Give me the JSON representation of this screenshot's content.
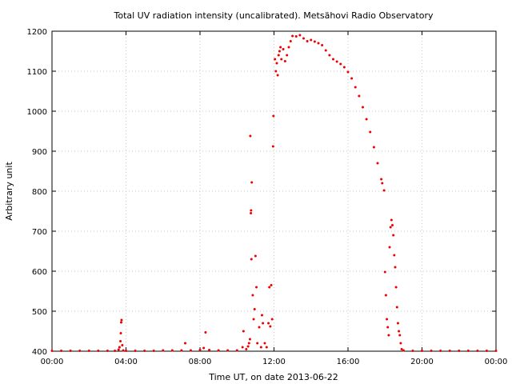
{
  "chart_data": {
    "type": "scatter",
    "title": "Total UV radiation intensity (uncalibrated). Metsähovi Radio Observatory",
    "xlabel": "Time UT, on date 2013-06-22",
    "ylabel": "Arbitrary unit",
    "xlim": [
      0,
      24
    ],
    "ylim": [
      400,
      1200
    ],
    "x_unit": "hours UT",
    "x_ticks": [
      0,
      4,
      8,
      12,
      16,
      20,
      24
    ],
    "x_tick_labels": [
      "00:00",
      "04:00",
      "08:00",
      "12:00",
      "16:00",
      "20:00",
      "00:00"
    ],
    "y_ticks": [
      400,
      500,
      600,
      700,
      800,
      900,
      1000,
      1100,
      1200
    ],
    "y_tick_labels": [
      "400",
      "500",
      "600",
      "700",
      "800",
      "900",
      "1000",
      "1100",
      "1200"
    ],
    "grid": true,
    "legend": "none",
    "marker_color": "#ee0000",
    "series": [
      {
        "points": [
          [
            0.0,
            401
          ],
          [
            0.5,
            401
          ],
          [
            1.0,
            401
          ],
          [
            1.5,
            401
          ],
          [
            2.0,
            401
          ],
          [
            2.5,
            401
          ],
          [
            3.0,
            401
          ],
          [
            3.4,
            401
          ],
          [
            3.6,
            404
          ],
          [
            3.65,
            410
          ],
          [
            3.7,
            425
          ],
          [
            3.72,
            445
          ],
          [
            3.74,
            472
          ],
          [
            3.76,
            478
          ],
          [
            3.8,
            415
          ],
          [
            3.85,
            402
          ],
          [
            4.0,
            401
          ],
          [
            4.5,
            401
          ],
          [
            5.0,
            401
          ],
          [
            5.5,
            401
          ],
          [
            6.0,
            402
          ],
          [
            6.5,
            402
          ],
          [
            7.0,
            402
          ],
          [
            7.2,
            420
          ],
          [
            7.5,
            402
          ],
          [
            8.0,
            403
          ],
          [
            8.2,
            408
          ],
          [
            8.3,
            447
          ],
          [
            8.5,
            403
          ],
          [
            9.0,
            402
          ],
          [
            9.5,
            402
          ],
          [
            10.0,
            402
          ],
          [
            10.3,
            410
          ],
          [
            10.35,
            450
          ],
          [
            10.5,
            405
          ],
          [
            10.6,
            412
          ],
          [
            10.65,
            420
          ],
          [
            10.7,
            430
          ],
          [
            10.72,
            938
          ],
          [
            10.75,
            745
          ],
          [
            10.76,
            752
          ],
          [
            10.78,
            630
          ],
          [
            10.8,
            822
          ],
          [
            10.85,
            540
          ],
          [
            10.9,
            480
          ],
          [
            10.95,
            505
          ],
          [
            11.0,
            638
          ],
          [
            11.05,
            560
          ],
          [
            11.1,
            420
          ],
          [
            11.2,
            460
          ],
          [
            11.3,
            410
          ],
          [
            11.35,
            490
          ],
          [
            11.4,
            470
          ],
          [
            11.5,
            420
          ],
          [
            11.6,
            410
          ],
          [
            11.7,
            470
          ],
          [
            11.75,
            560
          ],
          [
            11.8,
            462
          ],
          [
            11.85,
            565
          ],
          [
            11.9,
            480
          ],
          [
            11.95,
            912
          ],
          [
            11.97,
            988
          ],
          [
            12.05,
            1130
          ],
          [
            12.1,
            1100
          ],
          [
            12.15,
            1120
          ],
          [
            12.2,
            1090
          ],
          [
            12.25,
            1140
          ],
          [
            12.3,
            1150
          ],
          [
            12.35,
            1160
          ],
          [
            12.4,
            1130
          ],
          [
            12.5,
            1155
          ],
          [
            12.6,
            1125
          ],
          [
            12.7,
            1140
          ],
          [
            12.8,
            1160
          ],
          [
            12.9,
            1175
          ],
          [
            13.0,
            1188
          ],
          [
            13.2,
            1187
          ],
          [
            13.4,
            1190
          ],
          [
            13.6,
            1182
          ],
          [
            13.8,
            1175
          ],
          [
            14.0,
            1178
          ],
          [
            14.2,
            1174
          ],
          [
            14.4,
            1170
          ],
          [
            14.6,
            1165
          ],
          [
            14.8,
            1152
          ],
          [
            15.0,
            1140
          ],
          [
            15.2,
            1130
          ],
          [
            15.4,
            1124
          ],
          [
            15.6,
            1118
          ],
          [
            15.8,
            1110
          ],
          [
            16.0,
            1098
          ],
          [
            16.2,
            1082
          ],
          [
            16.4,
            1060
          ],
          [
            16.6,
            1038
          ],
          [
            16.8,
            1010
          ],
          [
            17.0,
            980
          ],
          [
            17.2,
            948
          ],
          [
            17.4,
            910
          ],
          [
            17.6,
            870
          ],
          [
            17.8,
            830
          ],
          [
            17.85,
            820
          ],
          [
            17.95,
            802
          ],
          [
            18.0,
            598
          ],
          [
            18.05,
            540
          ],
          [
            18.1,
            480
          ],
          [
            18.15,
            460
          ],
          [
            18.2,
            440
          ],
          [
            18.25,
            660
          ],
          [
            18.3,
            710
          ],
          [
            18.35,
            728
          ],
          [
            18.4,
            715
          ],
          [
            18.45,
            690
          ],
          [
            18.5,
            640
          ],
          [
            18.55,
            610
          ],
          [
            18.6,
            560
          ],
          [
            18.65,
            510
          ],
          [
            18.7,
            470
          ],
          [
            18.75,
            450
          ],
          [
            18.8,
            440
          ],
          [
            18.85,
            420
          ],
          [
            18.9,
            405
          ],
          [
            19.0,
            402
          ],
          [
            19.5,
            401
          ],
          [
            20.0,
            401
          ],
          [
            20.5,
            401
          ],
          [
            21.0,
            401
          ],
          [
            21.5,
            401
          ],
          [
            22.0,
            401
          ],
          [
            22.5,
            401
          ],
          [
            23.0,
            401
          ],
          [
            23.5,
            401
          ],
          [
            24.0,
            401
          ]
        ]
      }
    ]
  }
}
